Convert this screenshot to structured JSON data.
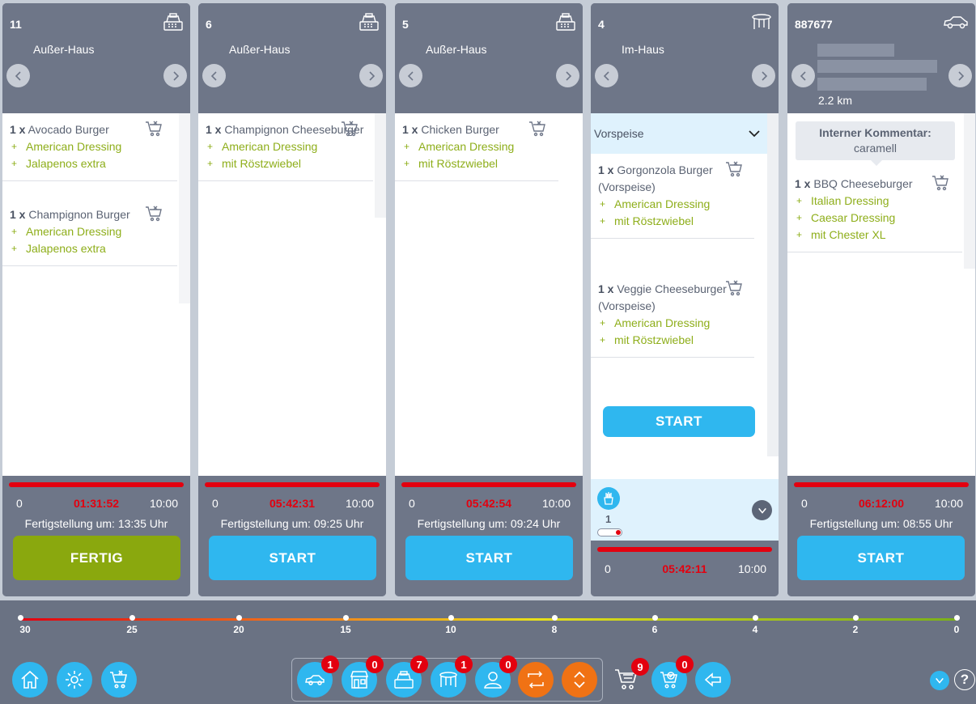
{
  "orders": [
    {
      "number": "11",
      "type": "Außer-Haus",
      "type_icon": "cash-register-icon",
      "items": [
        {
          "qty": "1 x",
          "name": "Avocado Burger",
          "mods": [
            "American Dressing",
            "Jalapenos extra"
          ]
        },
        {
          "qty": "1 x",
          "name": "Champignon Burger",
          "mods": [
            "American Dressing",
            "Jalapenos extra"
          ]
        }
      ],
      "timer_start": "0",
      "timer": "01:31:52",
      "timer_max": "10:00",
      "completion": "Fertigstellung um: 13:35 Uhr",
      "button": "FERTIG",
      "progress": 1.0
    },
    {
      "number": "6",
      "type": "Außer-Haus",
      "type_icon": "cash-register-icon",
      "items": [
        {
          "qty": "1 x",
          "name": "Champignon Cheeseburger",
          "mods": [
            "American Dressing",
            "mit Röstzwiebel"
          ]
        }
      ],
      "timer_start": "0",
      "timer": "05:42:31",
      "timer_max": "10:00",
      "completion": "Fertigstellung um: 09:25 Uhr",
      "button": "START",
      "progress": 1.0
    },
    {
      "number": "5",
      "type": "Außer-Haus",
      "type_icon": "cash-register-icon",
      "items": [
        {
          "qty": "1 x",
          "name": "Chicken Burger",
          "mods": [
            "American Dressing",
            "mit Röstzwiebel"
          ]
        }
      ],
      "timer_start": "0",
      "timer": "05:42:54",
      "timer_max": "10:00",
      "completion": "Fertigstellung um: 09:24 Uhr",
      "button": "START",
      "progress": 1.0
    },
    {
      "number": "4",
      "type": "Im-Haus",
      "type_icon": "table-icon",
      "course": "Vorspeise",
      "items": [
        {
          "qty": "1 x",
          "name": "Gorgonzola Burger (Vorspeise)",
          "mods": [
            "American Dressing",
            "mit Röstzwiebel"
          ]
        },
        {
          "qty": "1 x",
          "name": "Veggie Cheeseburger (Vorspeise)",
          "mods": [
            "American Dressing",
            "mit Röstzwiebel"
          ]
        }
      ],
      "course_button": "START",
      "course_count": "1",
      "timer_start": "0",
      "timer": "05:42:11",
      "timer_max": "10:00",
      "progress": 1.0
    },
    {
      "number": "887677",
      "type_icon": "car-icon",
      "distance": "2.2 km",
      "comment_title": "Interner Kommentar:",
      "comment": "caramell",
      "items": [
        {
          "qty": "1 x",
          "name": "BBQ Cheeseburger",
          "mods": [
            "Italian Dressing",
            "Caesar Dressing",
            "mit Chester XL"
          ]
        }
      ],
      "timer_start": "0",
      "timer": "06:12:00",
      "timer_max": "10:00",
      "completion": "Fertigstellung um: 08:55 Uhr",
      "button": "START",
      "progress": 1.0
    }
  ],
  "timeline": [
    "30",
    "25",
    "20",
    "15",
    "10",
    "8",
    "6",
    "4",
    "2",
    "0"
  ],
  "toolbar": {
    "filters": [
      {
        "icon": "car-icon",
        "count": "1"
      },
      {
        "icon": "store-icon",
        "count": "0"
      },
      {
        "icon": "cash-register-icon",
        "count": "7"
      },
      {
        "icon": "table-icon",
        "count": "1"
      },
      {
        "icon": "person-icon",
        "count": "0"
      }
    ],
    "cart_count": "9",
    "cart_check_count": "0"
  },
  "colors": {
    "accent": "#2fb7ef",
    "done": "#8aa80e",
    "alert": "#e3000f",
    "orange": "#f07214"
  }
}
